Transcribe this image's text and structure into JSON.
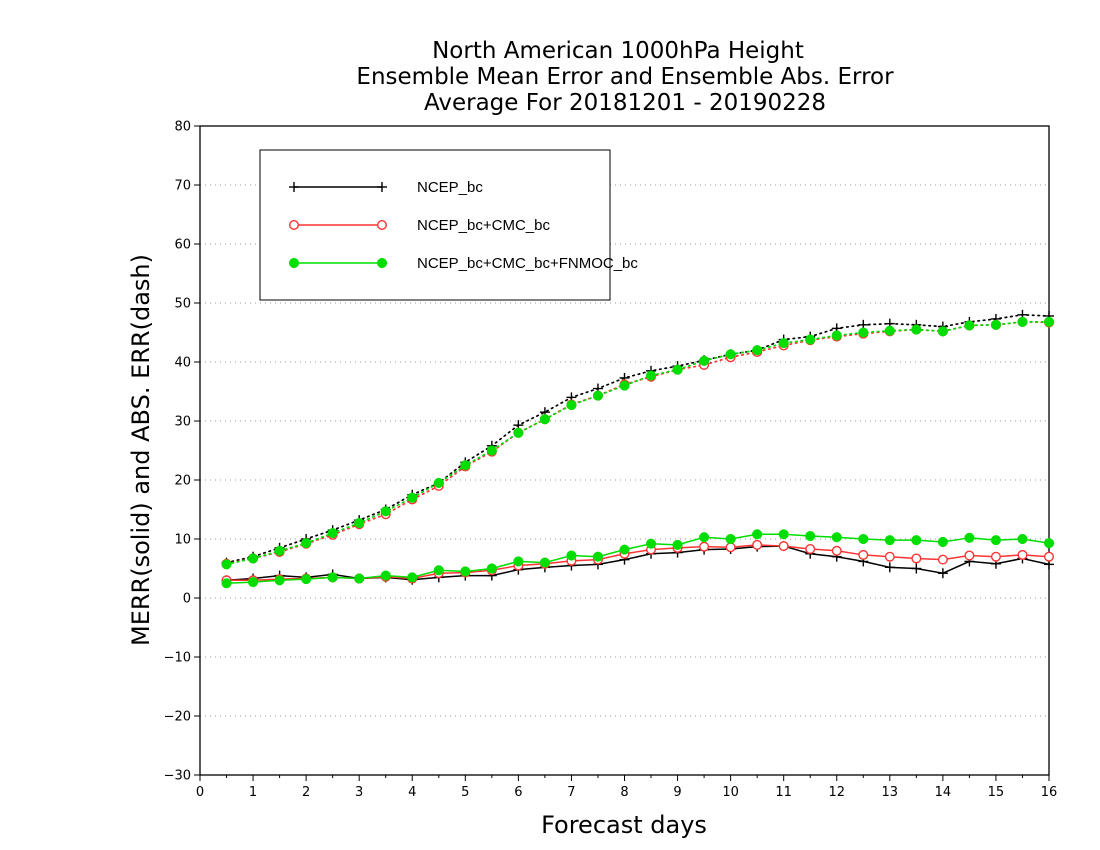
{
  "chart_data": {
    "type": "line",
    "title": [
      "North American 1000hPa Height",
      "Ensemble Mean Error and Ensemble Abs. Error",
      "Average For 20181201 - 20190228"
    ],
    "xlabel": "Forecast days",
    "ylabel": "MERR(solid) and ABS. ERR(dash)",
    "xlim": [
      0,
      16
    ],
    "ylim": [
      -30,
      80
    ],
    "xticks": [
      "0",
      "1",
      "2",
      "3",
      "4",
      "5",
      "6",
      "7",
      "8",
      "9",
      "10",
      "11",
      "12",
      "13",
      "14",
      "15",
      "16"
    ],
    "yticks": [
      "−30",
      "−20",
      "−10",
      "0",
      "10",
      "20",
      "30",
      "40",
      "50",
      "60",
      "70",
      "80"
    ],
    "grid": "horizontal dotted",
    "legend_position": "top-left",
    "x": [
      0.5,
      1,
      1.5,
      2,
      2.5,
      3,
      3.5,
      4,
      4.5,
      5,
      5.5,
      6,
      6.5,
      7,
      7.5,
      8,
      8.5,
      9,
      9.5,
      10,
      10.5,
      11,
      11.5,
      12,
      12.5,
      13,
      13.5,
      14,
      14.5,
      15,
      15.5,
      16
    ],
    "series": [
      {
        "name": "NCEP_bc",
        "color": "#000000",
        "marker": "plus",
        "merr": [
          3.0,
          3.3,
          3.8,
          3.5,
          4.0,
          3.3,
          3.5,
          3.1,
          3.5,
          3.8,
          3.8,
          4.8,
          5.2,
          5.5,
          5.7,
          6.5,
          7.5,
          7.7,
          8.2,
          8.3,
          8.7,
          8.8,
          7.5,
          7.0,
          6.2,
          5.2,
          5.0,
          4.2,
          6.2,
          5.8,
          6.7,
          5.7
        ],
        "abs_err": [
          6.0,
          7.0,
          8.5,
          10.0,
          11.5,
          13.2,
          15.0,
          17.5,
          19.5,
          23.0,
          25.8,
          29.3,
          31.5,
          34.0,
          35.5,
          37.3,
          38.5,
          39.3,
          40.3,
          41.3,
          42.0,
          43.8,
          44.3,
          45.7,
          46.3,
          46.5,
          46.3,
          46.0,
          46.8,
          47.3,
          48.0,
          47.8
        ]
      },
      {
        "name": "NCEP_bc+CMC_bc",
        "color": "#ff3333",
        "marker": "open-circle",
        "merr": [
          3.0,
          3.0,
          3.2,
          3.3,
          3.5,
          3.3,
          3.6,
          3.3,
          4.2,
          4.3,
          4.7,
          5.5,
          5.8,
          6.3,
          6.5,
          7.5,
          8.2,
          8.5,
          8.7,
          8.6,
          9.0,
          8.8,
          8.3,
          8.0,
          7.3,
          7.0,
          6.7,
          6.5,
          7.2,
          7.0,
          7.3,
          7.0
        ],
        "abs_err": [
          5.8,
          6.7,
          7.8,
          9.2,
          10.7,
          12.5,
          14.2,
          16.7,
          19.0,
          22.3,
          24.8,
          28.0,
          30.3,
          32.8,
          34.3,
          36.2,
          37.5,
          38.7,
          39.5,
          40.8,
          41.7,
          42.8,
          43.7,
          44.3,
          44.8,
          45.2,
          45.5,
          45.2,
          46.2,
          46.3,
          46.8,
          46.7
        ]
      },
      {
        "name": "NCEP_bc+CMC_bc+FNMOC_bc",
        "color": "#00dd00",
        "marker": "filled-circle",
        "merr": [
          2.5,
          2.7,
          3.0,
          3.2,
          3.5,
          3.3,
          3.8,
          3.5,
          4.7,
          4.5,
          5.0,
          6.2,
          6.0,
          7.2,
          7.0,
          8.2,
          9.2,
          9.0,
          10.3,
          10.0,
          10.8,
          10.8,
          10.5,
          10.3,
          10.0,
          9.8,
          9.8,
          9.5,
          10.2,
          9.8,
          10.0,
          9.3
        ],
        "abs_err": [
          5.7,
          6.7,
          8.0,
          9.3,
          11.0,
          12.7,
          14.7,
          17.0,
          19.5,
          22.5,
          25.0,
          28.0,
          30.3,
          32.7,
          34.3,
          36.0,
          37.7,
          38.7,
          40.2,
          41.3,
          42.0,
          43.2,
          43.8,
          44.5,
          45.0,
          45.3,
          45.5,
          45.2,
          46.2,
          46.3,
          46.8,
          46.8
        ]
      }
    ]
  }
}
